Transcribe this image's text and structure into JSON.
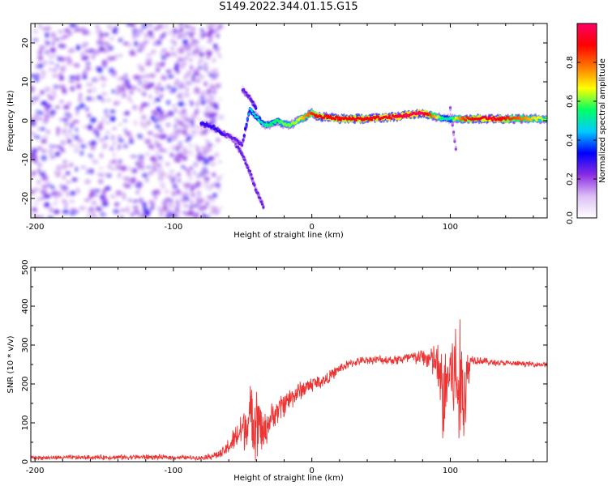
{
  "title": "S149.2022.344.01.15.G15",
  "chart_data": [
    {
      "type": "heatmap",
      "xlabel": "Height of straight line (km)",
      "ylabel": "Frequency (Hz)",
      "xlim": [
        -203,
        170
      ],
      "ylim": [
        -25,
        25
      ],
      "x_ticks": [
        -200,
        -100,
        0,
        100
      ],
      "y_ticks": [
        -20,
        -10,
        0,
        10,
        20
      ],
      "colorbar": {
        "label": "Normalized spectral amplitude",
        "range": [
          0,
          1
        ],
        "ticks": [
          "0.0",
          "0.2",
          "0.4",
          "0.6",
          "0.8"
        ],
        "colors": [
          "#ffffff",
          "#dcc0f5",
          "#8a2be2",
          "#0000ff",
          "#00ccff",
          "#00ff66",
          "#ffff00",
          "#ff7700",
          "#ff0000",
          "#ff0066"
        ]
      },
      "noise_region_x": [
        -203,
        -68
      ],
      "track": {
        "x": [
          -80,
          -75,
          -70,
          -65,
          -60,
          -55,
          -50,
          -45,
          -40,
          -35,
          -30,
          -25,
          -20,
          -15,
          -10,
          -5,
          0,
          5,
          10,
          20,
          40,
          60,
          80,
          90,
          95,
          100,
          105,
          110,
          130,
          150,
          170
        ],
        "y": [
          -1,
          -1,
          -2,
          -3,
          -4,
          -5,
          -6,
          3,
          1,
          -1,
          -1,
          0,
          -1,
          -1,
          0,
          1,
          2,
          1,
          1,
          0.5,
          0.5,
          1,
          2,
          1,
          0.5,
          0.5,
          0.5,
          0.5,
          0.5,
          0.5,
          0.5
        ],
        "amplitude": [
          0.3,
          0.3,
          0.3,
          0.3,
          0.25,
          0.25,
          0.25,
          0.45,
          0.5,
          0.5,
          0.55,
          0.55,
          0.6,
          0.6,
          0.65,
          0.75,
          0.85,
          0.9,
          0.9,
          0.9,
          0.9,
          0.95,
          1.0,
          0.7,
          0.5,
          0.5,
          0.7,
          0.85,
          0.95,
          0.8,
          0.6
        ]
      },
      "branches": [
        {
          "x": [
            -55,
            -50,
            -45,
            -40,
            -35
          ],
          "y": [
            -6,
            -9,
            -13,
            -18,
            -22
          ],
          "amplitude": [
            0.25,
            0.25,
            0.25,
            0.25,
            0.25
          ]
        },
        {
          "x": [
            -50,
            -45,
            -40
          ],
          "y": [
            8,
            6,
            3
          ],
          "amplitude": [
            0.25,
            0.25,
            0.3
          ]
        },
        {
          "x": [
            100,
            102,
            104
          ],
          "y": [
            3,
            -2,
            -7
          ],
          "amplitude": [
            0.2,
            0.2,
            0.2
          ]
        }
      ]
    },
    {
      "type": "line",
      "xlabel": "Height of straight line (km)",
      "ylabel": "SNR (10 * v/v)",
      "xlim": [
        -203,
        170
      ],
      "ylim": [
        0,
        500
      ],
      "x_ticks": [
        -200,
        -100,
        0,
        100
      ],
      "y_ticks": [
        0,
        100,
        200,
        300,
        400,
        500
      ],
      "color": "#ee3333",
      "envelope": {
        "x": [
          -203,
          -120,
          -80,
          -65,
          -55,
          -45,
          -40,
          -35,
          -30,
          -20,
          -10,
          0,
          10,
          20,
          30,
          40,
          60,
          80,
          90,
          95,
          100,
          105,
          110,
          115,
          130,
          150,
          170
        ],
        "mean": [
          10,
          12,
          10,
          20,
          60,
          110,
          120,
          70,
          110,
          150,
          180,
          200,
          210,
          240,
          255,
          262,
          262,
          270,
          255,
          160,
          240,
          200,
          180,
          265,
          255,
          252,
          250
        ],
        "spread": [
          6,
          8,
          6,
          15,
          40,
          90,
          130,
          60,
          40,
          40,
          30,
          25,
          20,
          15,
          12,
          12,
          15,
          25,
          60,
          160,
          120,
          220,
          160,
          15,
          10,
          8,
          8
        ]
      }
    }
  ]
}
